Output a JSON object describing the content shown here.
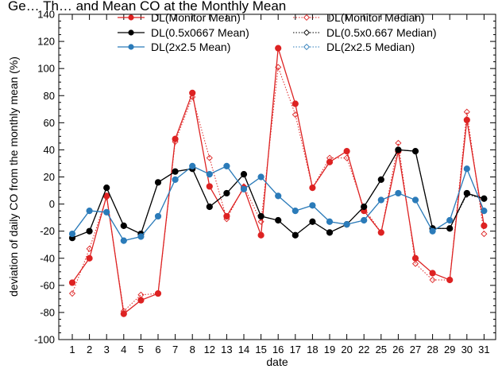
{
  "chart_data": {
    "type": "line",
    "title": "Ge… Th… and Mean CO at the Monthly Mean",
    "xlabel": "date",
    "ylabel": "deviation of daily CO from the monthly mean (%)",
    "ylim": [
      -100,
      140
    ],
    "yticks": [
      "-100",
      "-80",
      "-60",
      "-40",
      "-20",
      "0",
      "20",
      "40",
      "60",
      "80",
      "100",
      "120",
      "140"
    ],
    "categories": [
      "1",
      "2",
      "3",
      "4",
      "5",
      "6",
      "7",
      "8",
      "12",
      "13",
      "14",
      "15",
      "16",
      "17",
      "18",
      "19",
      "20",
      "22",
      "25",
      "26",
      "27",
      "28",
      "29",
      "30",
      "31"
    ],
    "series": [
      {
        "name": "DL(Monitor Mean)",
        "color": "#dd2222",
        "style": "solid",
        "marker": "filled-circle",
        "values": [
          -58,
          -40,
          6,
          -81,
          -71,
          -66,
          48,
          82,
          13,
          -9,
          12,
          -23,
          115,
          74,
          12,
          31,
          39,
          -5,
          -21,
          39,
          -40,
          -51,
          -56,
          62,
          -16
        ]
      },
      {
        "name": "DL(0.5x0667 Mean)",
        "color": "#000000",
        "style": "solid",
        "marker": "filled-circle",
        "values": [
          -25,
          -20,
          12,
          -16,
          -22,
          16,
          24,
          26,
          -2,
          8,
          22,
          -9,
          -12,
          -23,
          -13,
          -21,
          -15,
          -2,
          18,
          40,
          39,
          -18,
          -18,
          8,
          4
        ]
      },
      {
        "name": "DL(2x2.5 Mean)",
        "color": "#2b7bb9",
        "style": "solid",
        "marker": "filled-circle",
        "values": [
          -22,
          -5,
          -6,
          -27,
          -24,
          -9,
          18,
          28,
          22,
          28,
          11,
          20,
          6,
          -5,
          -1,
          -13,
          -15,
          -12,
          3,
          8,
          3,
          -20,
          -12,
          26,
          -5
        ]
      },
      {
        "name": "DL(Monitor Median)",
        "color": "#dd2222",
        "style": "dotted",
        "marker": "open-diamond",
        "values": [
          -66,
          -33,
          5,
          -79,
          -67,
          -66,
          46,
          79,
          34,
          -11,
          13,
          -13,
          101,
          66,
          12,
          34,
          34,
          -3,
          -21,
          45,
          -44,
          -56,
          -56,
          68,
          -22
        ]
      },
      {
        "name": "DL(0.5x0.667 Median)",
        "color": "#000000",
        "style": "dotted",
        "marker": "open-diamond",
        "values": [
          -25,
          -20,
          12,
          -16,
          -22,
          16,
          24,
          26,
          -2,
          8,
          22,
          -9,
          -12,
          -23,
          -13,
          -21,
          -15,
          -2,
          18,
          40,
          39,
          -18,
          -18,
          7,
          4
        ]
      },
      {
        "name": "DL(2x2.5 Median)",
        "color": "#2b7bb9",
        "style": "dotted",
        "marker": "open-diamond",
        "values": [
          -22,
          -5,
          -6,
          -27,
          -24,
          -9,
          18,
          28,
          22,
          28,
          11,
          20,
          6,
          -5,
          -1,
          -13,
          -15,
          -12,
          3,
          8,
          3,
          -20,
          -12,
          26,
          -5
        ]
      }
    ],
    "legend": {
      "placement": "top",
      "columns": 2
    },
    "grid": false
  }
}
